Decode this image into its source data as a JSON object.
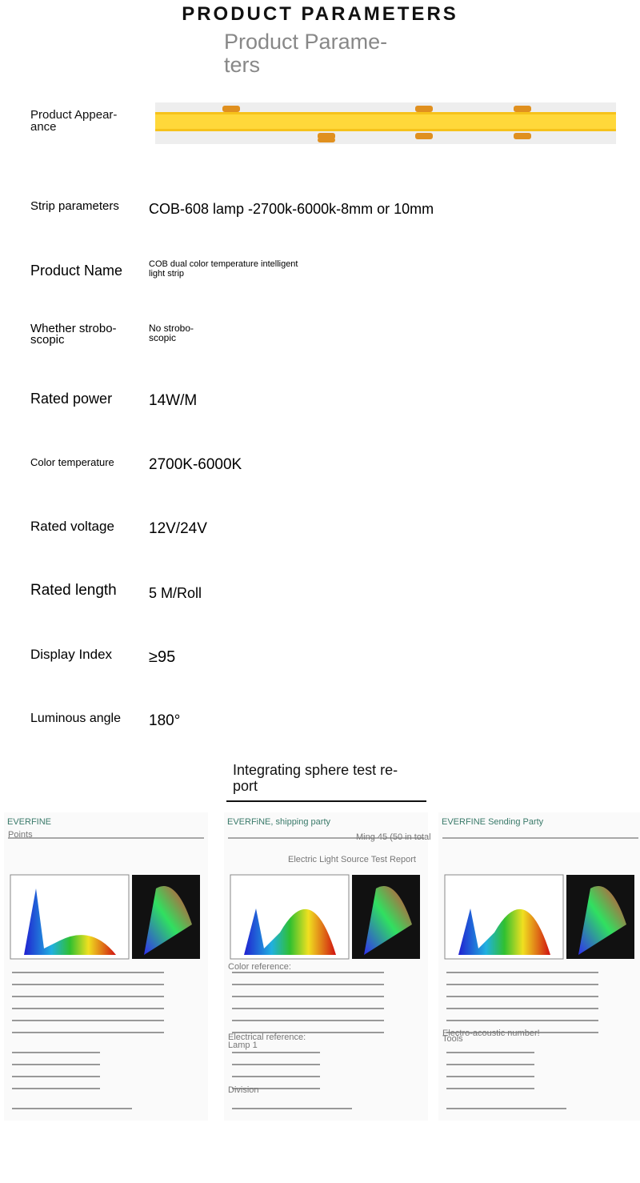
{
  "header": {
    "title": "PRODUCT PARAMETERS",
    "subtitle_lines": [
      "Product Parame-",
      "ters"
    ]
  },
  "appearance": {
    "label_lines": [
      "Product Appear-",
      "ance"
    ]
  },
  "parameters": [
    {
      "label_lines": [
        "Strip parameters"
      ],
      "value_lines": [
        "COB-608 lamp -2700k-6000k-8mm or 10mm"
      ]
    },
    {
      "label_lines": [
        "Product Name"
      ],
      "value_lines": [
        "COB dual color temperature intelligent",
        "light strip"
      ]
    },
    {
      "label_lines": [
        "Whether strobo-",
        "scopic"
      ],
      "value_lines": [
        "No strobo-",
        "scopic"
      ]
    },
    {
      "label_lines": [
        "Rated power"
      ],
      "value_lines": [
        "14W/M"
      ]
    },
    {
      "label_lines": [
        "Color temperature"
      ],
      "value_lines": [
        "2700K-6000K"
      ]
    },
    {
      "label_lines": [
        "Rated voltage"
      ],
      "value_lines": [
        "12V/24V"
      ]
    },
    {
      "label_lines": [
        "Rated length"
      ],
      "value_lines": [
        "5 M/Roll"
      ]
    },
    {
      "label_lines": [
        "Display Index"
      ],
      "value_lines": [
        "≥95"
      ]
    },
    {
      "label_lines": [
        "Luminous angle"
      ],
      "value_lines": [
        "180°"
      ]
    }
  ],
  "report": {
    "title_lines": [
      "Integrating sphere test re-",
      "port"
    ],
    "cards": [
      {
        "brand": "EVERFINE",
        "notes": [
          "Points"
        ]
      },
      {
        "brand": "EVERFiNE, shipping party",
        "notes": [
          "Ming 45 (50 in total",
          "Electric Light Source Test Report",
          "Color reference:",
          "Electrical reference:",
          "Lamp 1",
          "Division"
        ]
      },
      {
        "brand": "EVERFINE Sending Party",
        "notes": [
          "Tools",
          "Electro-acoustic number!"
        ]
      }
    ]
  }
}
